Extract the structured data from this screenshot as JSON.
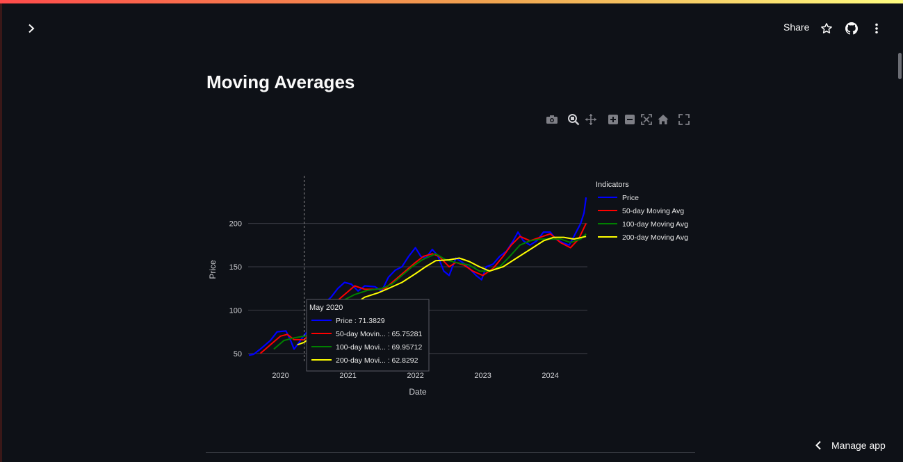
{
  "header": {
    "share_label": "Share",
    "icons": [
      "chevron-right-icon",
      "star-icon",
      "github-icon",
      "kebab-menu-icon"
    ]
  },
  "main": {
    "title": "Moving Averages"
  },
  "modebar": [
    "camera-icon",
    "zoom-icon",
    "pan-icon",
    "zoom-in-icon",
    "zoom-out-icon",
    "autoscale-icon",
    "reset-axes-icon",
    "fullscreen-icon"
  ],
  "colors": {
    "background": "#0e1117",
    "price": "#0000ff",
    "ma50": "#ff0000",
    "ma100": "#008000",
    "ma200": "#ffff00",
    "grid": "#3a3c44"
  },
  "chart_data": {
    "type": "line",
    "xlabel": "Date",
    "ylabel": "Price",
    "ylim": [
      41,
      255
    ],
    "xlim": [
      2019.52,
      2024.55
    ],
    "y_ticks": [
      50,
      100,
      150,
      200
    ],
    "x_ticks": [
      2020,
      2021,
      2022,
      2023,
      2024
    ],
    "x_tick_labels": [
      "2020",
      "2021",
      "2022",
      "2023",
      "2024"
    ],
    "grid": true,
    "legend": {
      "title": "Indicators",
      "position": "right"
    },
    "series": [
      {
        "name": "Price",
        "color": "#0000ff",
        "points": [
          [
            2019.53,
            48
          ],
          [
            2019.6,
            49
          ],
          [
            2019.7,
            55
          ],
          [
            2019.85,
            65
          ],
          [
            2019.95,
            75
          ],
          [
            2020.08,
            76
          ],
          [
            2020.15,
            65
          ],
          [
            2020.2,
            55
          ],
          [
            2020.25,
            60
          ],
          [
            2020.35,
            71
          ],
          [
            2020.45,
            80
          ],
          [
            2020.55,
            95
          ],
          [
            2020.65,
            108
          ],
          [
            2020.75,
            115
          ],
          [
            2020.85,
            125
          ],
          [
            2020.95,
            132
          ],
          [
            2021.05,
            130
          ],
          [
            2021.15,
            122
          ],
          [
            2021.25,
            128
          ],
          [
            2021.4,
            127
          ],
          [
            2021.5,
            122
          ],
          [
            2021.6,
            138
          ],
          [
            2021.7,
            146
          ],
          [
            2021.8,
            150
          ],
          [
            2021.9,
            162
          ],
          [
            2022.0,
            172
          ],
          [
            2022.08,
            162
          ],
          [
            2022.15,
            160
          ],
          [
            2022.25,
            170
          ],
          [
            2022.33,
            163
          ],
          [
            2022.42,
            145
          ],
          [
            2022.5,
            140
          ],
          [
            2022.6,
            160
          ],
          [
            2022.7,
            155
          ],
          [
            2022.8,
            148
          ],
          [
            2022.9,
            140
          ],
          [
            2022.98,
            135
          ],
          [
            2023.05,
            150
          ],
          [
            2023.15,
            153
          ],
          [
            2023.25,
            162
          ],
          [
            2023.35,
            168
          ],
          [
            2023.45,
            180
          ],
          [
            2023.52,
            190
          ],
          [
            2023.6,
            180
          ],
          [
            2023.7,
            175
          ],
          [
            2023.8,
            180
          ],
          [
            2023.9,
            190
          ],
          [
            2024.0,
            190
          ],
          [
            2024.08,
            182
          ],
          [
            2024.18,
            178
          ],
          [
            2024.28,
            175
          ],
          [
            2024.35,
            185
          ],
          [
            2024.45,
            200
          ],
          [
            2024.5,
            212
          ],
          [
            2024.53,
            230
          ]
        ]
      },
      {
        "name": "50-day Moving Avg",
        "color": "#ff0000",
        "points": [
          [
            2019.7,
            50
          ],
          [
            2019.85,
            60
          ],
          [
            2020.0,
            70
          ],
          [
            2020.1,
            72
          ],
          [
            2020.2,
            66
          ],
          [
            2020.35,
            65.75
          ],
          [
            2020.5,
            78
          ],
          [
            2020.65,
            92
          ],
          [
            2020.8,
            108
          ],
          [
            2020.95,
            118
          ],
          [
            2021.1,
            128
          ],
          [
            2021.25,
            124
          ],
          [
            2021.4,
            124
          ],
          [
            2021.55,
            125
          ],
          [
            2021.7,
            135
          ],
          [
            2021.85,
            145
          ],
          [
            2022.0,
            155
          ],
          [
            2022.12,
            162
          ],
          [
            2022.25,
            165
          ],
          [
            2022.35,
            162
          ],
          [
            2022.5,
            150
          ],
          [
            2022.6,
            155
          ],
          [
            2022.72,
            152
          ],
          [
            2022.85,
            145
          ],
          [
            2023.0,
            140
          ],
          [
            2023.15,
            148
          ],
          [
            2023.3,
            162
          ],
          [
            2023.42,
            175
          ],
          [
            2023.55,
            185
          ],
          [
            2023.7,
            180
          ],
          [
            2023.85,
            184
          ],
          [
            2024.0,
            188
          ],
          [
            2024.15,
            178
          ],
          [
            2024.3,
            172
          ],
          [
            2024.42,
            182
          ],
          [
            2024.53,
            200
          ]
        ]
      },
      {
        "name": "100-day Moving Avg",
        "color": "#008000",
        "points": [
          [
            2019.9,
            55
          ],
          [
            2020.05,
            65
          ],
          [
            2020.2,
            68
          ],
          [
            2020.35,
            69.96
          ],
          [
            2020.5,
            72
          ],
          [
            2020.65,
            88
          ],
          [
            2020.8,
            102
          ],
          [
            2020.95,
            112
          ],
          [
            2021.1,
            118
          ],
          [
            2021.3,
            123
          ],
          [
            2021.5,
            125
          ],
          [
            2021.65,
            130
          ],
          [
            2021.8,
            140
          ],
          [
            2021.95,
            150
          ],
          [
            2022.1,
            158
          ],
          [
            2022.3,
            165
          ],
          [
            2022.45,
            158
          ],
          [
            2022.6,
            155
          ],
          [
            2022.8,
            152
          ],
          [
            2022.95,
            145
          ],
          [
            2023.1,
            145
          ],
          [
            2023.25,
            150
          ],
          [
            2023.4,
            162
          ],
          [
            2023.55,
            175
          ],
          [
            2023.7,
            180
          ],
          [
            2023.85,
            182
          ],
          [
            2024.0,
            182
          ],
          [
            2024.15,
            182
          ],
          [
            2024.3,
            178
          ],
          [
            2024.45,
            182
          ],
          [
            2024.53,
            188
          ]
        ]
      },
      {
        "name": "200-day Moving Avg",
        "color": "#ffff00",
        "points": [
          [
            2020.25,
            60
          ],
          [
            2020.35,
            62.83
          ],
          [
            2020.5,
            72
          ],
          [
            2020.7,
            85
          ],
          [
            2020.9,
            98
          ],
          [
            2021.05,
            105
          ],
          [
            2021.25,
            115
          ],
          [
            2021.45,
            120
          ],
          [
            2021.6,
            125
          ],
          [
            2021.8,
            132
          ],
          [
            2022.0,
            142
          ],
          [
            2022.15,
            150
          ],
          [
            2022.3,
            157
          ],
          [
            2022.5,
            158
          ],
          [
            2022.65,
            160
          ],
          [
            2022.8,
            156
          ],
          [
            2022.95,
            150
          ],
          [
            2023.1,
            145
          ],
          [
            2023.3,
            150
          ],
          [
            2023.5,
            160
          ],
          [
            2023.7,
            170
          ],
          [
            2023.9,
            180
          ],
          [
            2024.05,
            184
          ],
          [
            2024.2,
            184
          ],
          [
            2024.35,
            182
          ],
          [
            2024.53,
            185
          ]
        ]
      }
    ],
    "hover": {
      "title": "May 2020",
      "x": 2020.35,
      "rows": [
        {
          "label": "Price : 71.3829",
          "color": "#0000ff"
        },
        {
          "label": "50-day Movin... : 65.75281",
          "color": "#ff0000"
        },
        {
          "label": "100-day Movi... : 69.95712",
          "color": "#008000"
        },
        {
          "label": "200-day Movi... : 62.8292",
          "color": "#ffff00"
        }
      ]
    }
  },
  "footer": {
    "manage_label": "Manage app"
  }
}
